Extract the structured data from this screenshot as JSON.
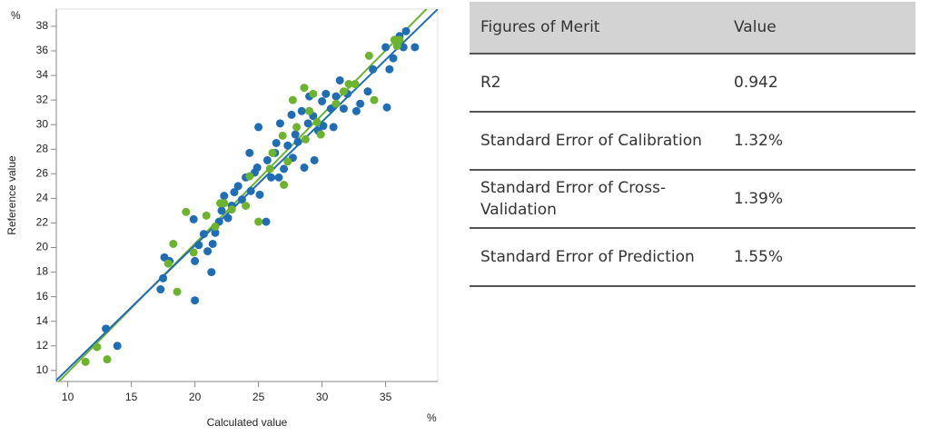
{
  "chart_data": {
    "type": "scatter",
    "xlabel": "Calculated value",
    "ylabel": "Reference value",
    "xunit": "%",
    "yunit": "%",
    "xlim": [
      9.1,
      39.1
    ],
    "ylim": [
      9.1,
      39.4
    ],
    "xticks": [
      10,
      15,
      20,
      25,
      30,
      35
    ],
    "yticks": [
      10,
      12,
      14,
      16,
      18,
      20,
      22,
      24,
      26,
      28,
      30,
      32,
      34,
      36,
      38
    ],
    "series": [
      {
        "type": "scatter",
        "color": "#1f6db4",
        "x": [
          13.0,
          13.9,
          17.3,
          17.5,
          17.6,
          18.0,
          19.9,
          20.0,
          20.0,
          20.3,
          20.7,
          21.0,
          21.3,
          21.4,
          21.6,
          21.9,
          22.1,
          22.3,
          22.6,
          22.9,
          23.1,
          23.4,
          23.7,
          24.0,
          24.3,
          24.4,
          24.7,
          24.9,
          25.1,
          25.0,
          25.6,
          25.7,
          26.0,
          26.3,
          26.4,
          26.6,
          26.7,
          27.0,
          27.3,
          27.6,
          27.7,
          27.9,
          28.1,
          28.4,
          28.6,
          28.9,
          29.0,
          29.3,
          29.4,
          29.7,
          30.0,
          30.1,
          30.3,
          30.7,
          30.9,
          31.1,
          31.4,
          31.7,
          32.0,
          32.7,
          33.0,
          33.6,
          34.0,
          35.0,
          35.1,
          35.3,
          35.6,
          36.1,
          36.4,
          36.6,
          37.3
        ],
        "values": [
          13.4,
          12.0,
          16.6,
          17.5,
          19.2,
          18.9,
          22.3,
          18.9,
          15.7,
          20.2,
          21.1,
          19.7,
          18.0,
          20.3,
          21.2,
          22.1,
          23.0,
          24.2,
          22.4,
          23.4,
          24.5,
          25.0,
          23.9,
          25.7,
          27.7,
          24.6,
          26.1,
          26.5,
          24.3,
          29.8,
          22.1,
          27.1,
          25.7,
          27.7,
          28.5,
          25.7,
          30.1,
          26.4,
          28.3,
          30.8,
          27.3,
          29.2,
          28.6,
          31.1,
          26.5,
          30.1,
          32.3,
          30.7,
          27.1,
          29.5,
          31.9,
          29.9,
          32.5,
          31.3,
          29.8,
          32.3,
          33.6,
          31.3,
          32.5,
          31.1,
          31.7,
          32.7,
          34.5,
          36.3,
          31.4,
          34.5,
          35.4,
          37.2,
          36.3,
          37.6,
          36.3
        ]
      },
      {
        "type": "scatter",
        "color": "#6cb42e",
        "x": [
          11.4,
          12.3,
          13.1,
          17.9,
          18.3,
          18.6,
          19.3,
          19.9,
          20.9,
          21.6,
          22.0,
          22.3,
          22.9,
          24.0,
          24.3,
          25.0,
          25.9,
          26.1,
          26.9,
          27.0,
          27.3,
          27.7,
          28.0,
          28.6,
          28.7,
          29.0,
          29.3,
          29.6,
          29.9,
          31.1,
          31.7,
          32.1,
          32.6,
          33.7,
          34.1,
          35.7,
          35.9,
          36.1
        ],
        "values": [
          10.7,
          11.9,
          10.9,
          18.7,
          20.3,
          16.4,
          22.9,
          19.6,
          22.6,
          21.7,
          23.6,
          23.6,
          23.1,
          23.4,
          25.8,
          22.1,
          26.4,
          27.7,
          29.1,
          25.1,
          27.0,
          32.0,
          29.8,
          33.0,
          28.8,
          31.1,
          32.5,
          30.2,
          29.2,
          31.7,
          32.7,
          33.3,
          33.3,
          35.6,
          32.0,
          36.9,
          36.4,
          36.9
        ]
      },
      {
        "type": "line",
        "color": "#6cb42e",
        "x": [
          9.2,
          38.4
        ],
        "values": [
          9.0,
          39.6
        ]
      },
      {
        "type": "line",
        "color": "#1f6db4",
        "x": [
          9.0,
          39.1
        ],
        "values": [
          9.1,
          39.4
        ]
      }
    ]
  },
  "table": {
    "header": [
      "Figures of Merit",
      "Value"
    ],
    "rows": [
      [
        "R2",
        "0.942"
      ],
      [
        "Standard Error of Calibration",
        "1.32%"
      ],
      [
        "Standard Error of Cross-Validation",
        "1.39%"
      ],
      [
        "Standard Error of Prediction",
        "1.55%"
      ]
    ]
  }
}
